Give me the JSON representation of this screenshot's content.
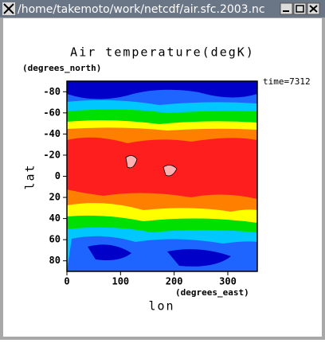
{
  "window": {
    "title": "/home/takemoto/work/netcdf/air.sfc.2003.nc"
  },
  "plot": {
    "title": "Air temperature(degK)",
    "y_units": "(degrees_north)",
    "x_units": "(degrees_east)",
    "time_label": "time=7312",
    "xlabel": "lon",
    "ylabel": "lat",
    "xlim": [
      0,
      355
    ],
    "ylim": [
      -90,
      90
    ],
    "xticks": [
      0,
      100,
      200,
      300
    ],
    "yticks": [
      -80,
      -60,
      -40,
      -20,
      0,
      20,
      40,
      60,
      80
    ]
  }
}
